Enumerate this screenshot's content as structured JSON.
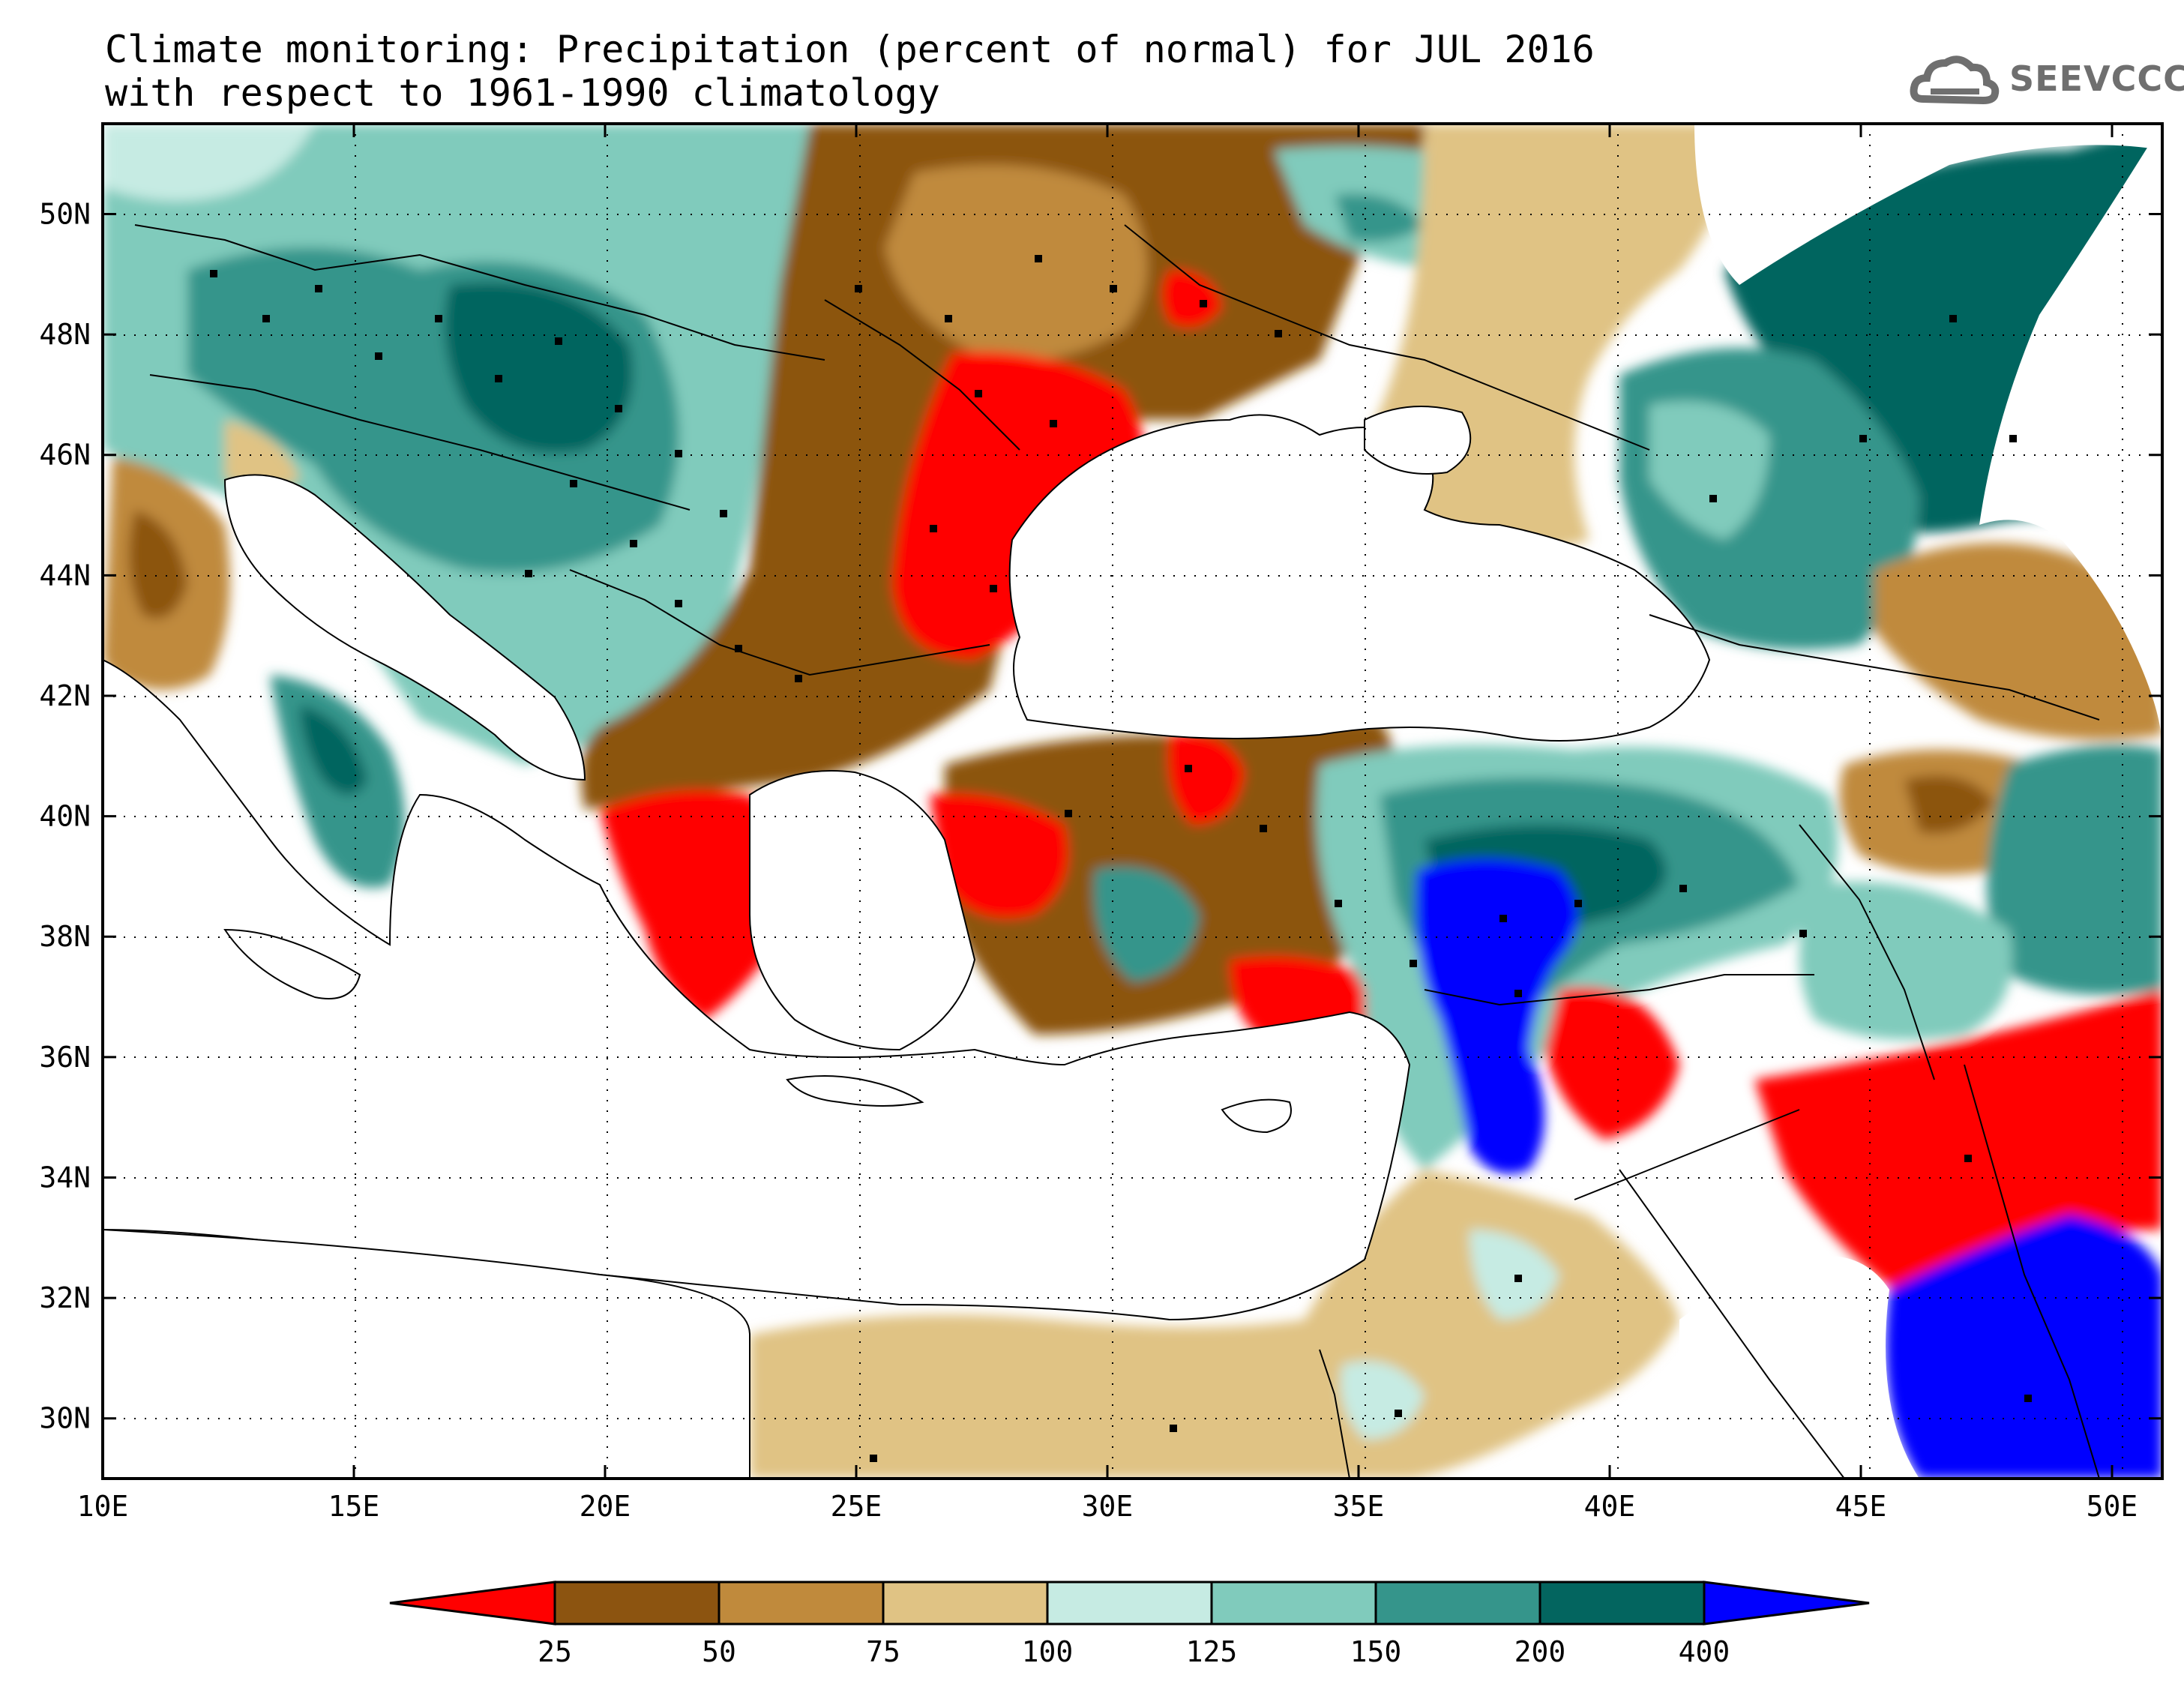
{
  "title": {
    "line1": "Climate monitoring: Precipitation (percent of normal) for JUL 2016",
    "line2": "with respect to 1961-1990 climatology"
  },
  "logo": {
    "text": "SEEVCCC",
    "icon": "cloud-icon"
  },
  "map": {
    "lon_range": [
      10,
      51
    ],
    "lat_range": [
      29,
      51.5
    ],
    "lon_ticks": [
      "10E",
      "15E",
      "20E",
      "25E",
      "30E",
      "35E",
      "40E",
      "45E",
      "50E"
    ],
    "lat_ticks": [
      "30N",
      "32N",
      "34N",
      "36N",
      "38N",
      "40N",
      "42N",
      "44N",
      "46N",
      "48N",
      "50N"
    ]
  },
  "colorbar": {
    "labels": [
      "25",
      "50",
      "75",
      "100",
      "125",
      "150",
      "200",
      "400"
    ],
    "colors": [
      "#ff0000",
      "#8c5410",
      "#c08a3c",
      "#e0c384",
      "#c6ebe3",
      "#80cbbc",
      "#35958b",
      "#03655f",
      "#0000ff"
    ]
  }
}
